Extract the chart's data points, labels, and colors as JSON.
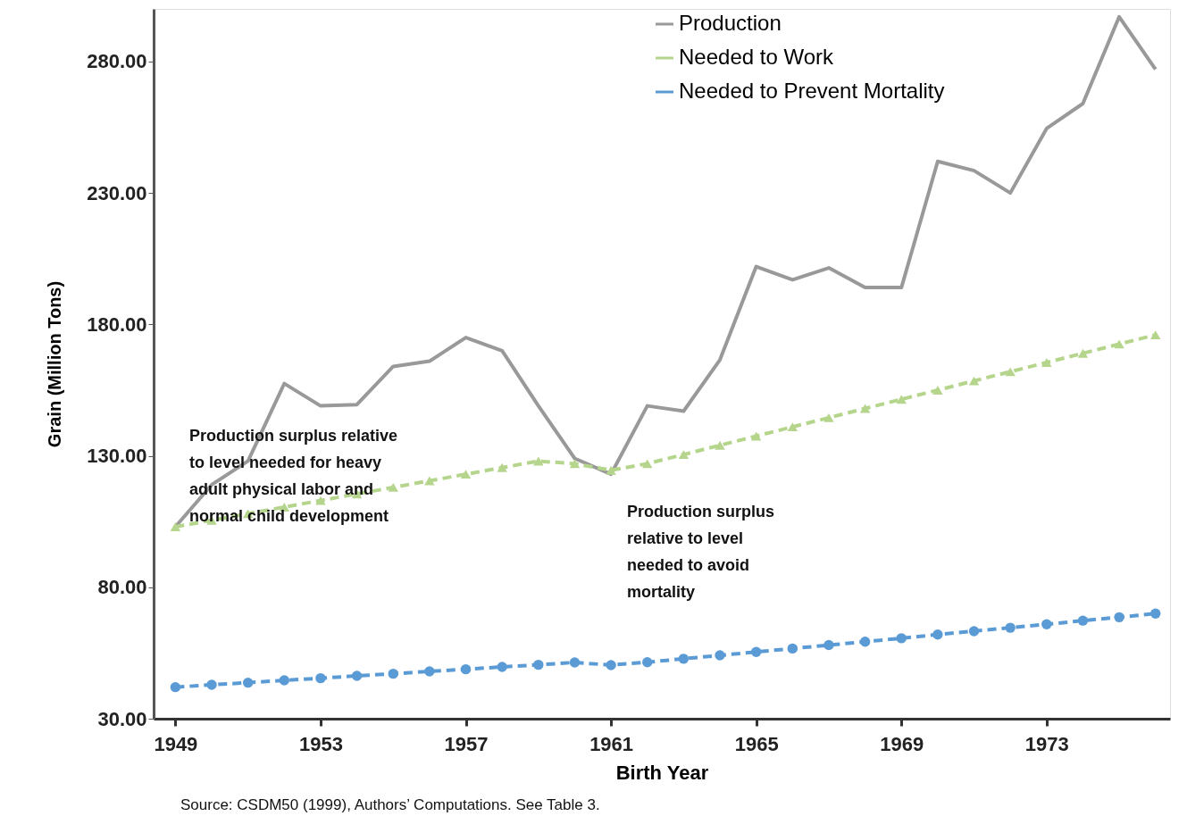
{
  "chart_data": {
    "type": "line",
    "xlabel": "Birth Year",
    "ylabel": "Grain (Million Tons)",
    "x": [
      1949,
      1950,
      1951,
      1952,
      1953,
      1954,
      1955,
      1956,
      1957,
      1958,
      1959,
      1960,
      1961,
      1962,
      1963,
      1964,
      1965,
      1966,
      1967,
      1968,
      1969,
      1970,
      1971,
      1972,
      1973,
      1974,
      1975,
      1976
    ],
    "series": [
      {
        "name": "Production",
        "color": "#999999",
        "marker": "none",
        "line_style": "solid",
        "values": [
          103,
          119,
          128,
          157.5,
          149,
          149.5,
          164,
          166,
          175,
          170,
          149,
          129,
          123,
          149,
          147,
          166.5,
          202,
          197,
          201.5,
          194,
          194,
          242,
          238.5,
          230,
          254.5,
          264,
          297,
          277
        ]
      },
      {
        "name": "Needed to Work",
        "color": "#b5d58c",
        "marker": "triangle",
        "line_style": "dashed",
        "values": [
          103,
          105.5,
          108,
          110.5,
          113,
          115.5,
          118,
          120.5,
          123,
          125.5,
          128,
          127,
          124.5,
          127,
          130.5,
          134,
          137.5,
          141,
          144.5,
          148,
          151.5,
          155,
          158.5,
          162,
          165.5,
          169,
          172.5,
          176
        ]
      },
      {
        "name": "Needed to Prevent Mortality",
        "color": "#5b9bd5",
        "marker": "circle",
        "line_style": "dashed",
        "values": [
          42,
          42.9,
          43.7,
          44.6,
          45.4,
          46.3,
          47.1,
          48,
          48.8,
          49.7,
          50.5,
          51.4,
          50.4,
          51.5,
          52.8,
          54.1,
          55.4,
          56.7,
          58,
          59.3,
          60.6,
          62,
          63.3,
          64.6,
          65.9,
          67.3,
          68.6,
          70
        ]
      }
    ],
    "xlim": [
      1948.4,
      1976.4
    ],
    "xticks": [
      1949,
      1953,
      1957,
      1961,
      1965,
      1969,
      1973
    ],
    "ylim": [
      30,
      300
    ],
    "yticks": [
      {
        "value": 30,
        "label": "30.00"
      },
      {
        "value": 80,
        "label": "80.00"
      },
      {
        "value": 130,
        "label": "130.00"
      },
      {
        "value": 180,
        "label": "180.00"
      },
      {
        "value": 230,
        "label": "230.00"
      },
      {
        "value": 280,
        "label": "280.00"
      }
    ],
    "grid": false,
    "legend": "top right",
    "annotations": [
      "Production surplus relative\nto level needed for heavy\nadult physical labor and\nnormal child development",
      "Production surplus\nrelative to level\nneeded to avoid\nmortality",
      "Source: CSDM50 (1999), Authors’ Computations. See Table 3."
    ]
  }
}
